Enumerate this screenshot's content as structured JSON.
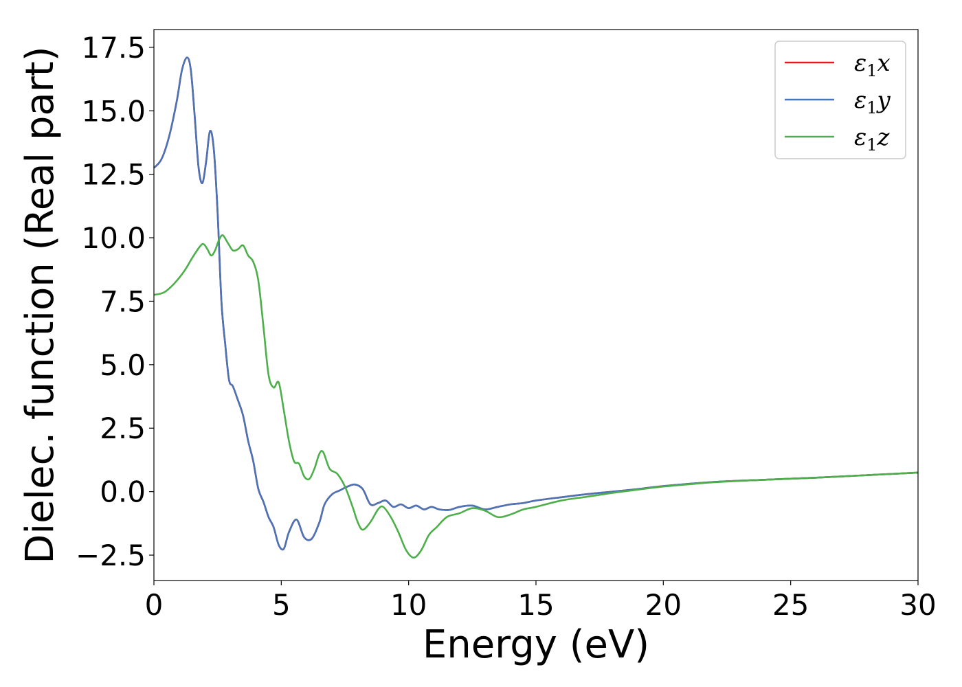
{
  "chart_data": {
    "type": "line",
    "xlabel": "Energy (eV)",
    "ylabel": "Dielec. function (Real part)",
    "xlim": [
      0,
      30
    ],
    "ylim": [
      -3.5,
      18.2
    ],
    "grid": false,
    "legend_position": "top-right",
    "xticks": [
      0,
      5,
      10,
      15,
      20,
      25,
      30
    ],
    "xtick_labels": [
      "0",
      "5",
      "10",
      "15",
      "20",
      "25",
      "30"
    ],
    "yticks": [
      -2.5,
      0,
      2.5,
      5,
      7.5,
      10,
      12.5,
      15,
      17.5
    ],
    "ytick_labels": [
      "−2.5",
      "0.0",
      "2.5",
      "5.0",
      "7.5",
      "10.0",
      "12.5",
      "15.0",
      "17.5"
    ],
    "series": [
      {
        "name_symbol": "ε",
        "name_sub": "1",
        "name_axis": "x",
        "color": "#e41a1c",
        "x": [
          0,
          0.3,
          0.6,
          0.9,
          1.1,
          1.3,
          1.45,
          1.6,
          1.75,
          1.9,
          2.05,
          2.2,
          2.35,
          2.5,
          2.65,
          2.8,
          2.95,
          3.1,
          3.3,
          3.5,
          3.7,
          3.9,
          4.1,
          4.3,
          4.5,
          4.7,
          4.9,
          5.1,
          5.3,
          5.6,
          5.9,
          6.2,
          6.5,
          6.7,
          7.0,
          7.3,
          7.6,
          7.9,
          8.2,
          8.5,
          8.8,
          9.1,
          9.4,
          9.7,
          10.0,
          10.3,
          10.6,
          10.9,
          11.2,
          11.6,
          12.0,
          12.5,
          13.0,
          13.5,
          14.0,
          14.5,
          15.0,
          16.0,
          17.0,
          18.0,
          19.0,
          20.0,
          22.0,
          24.0,
          26.0,
          28.0,
          30.0
        ],
        "y": [
          12.75,
          13.1,
          14.0,
          15.4,
          16.6,
          17.1,
          16.6,
          14.8,
          12.8,
          12.15,
          13.0,
          14.2,
          13.5,
          11.0,
          7.5,
          5.8,
          4.4,
          4.15,
          3.6,
          3.0,
          2.0,
          1.2,
          0.1,
          -0.4,
          -1.0,
          -1.4,
          -2.1,
          -2.25,
          -1.6,
          -1.1,
          -1.8,
          -1.85,
          -1.2,
          -0.5,
          -0.1,
          0.05,
          0.2,
          0.28,
          0.1,
          -0.5,
          -0.45,
          -0.35,
          -0.6,
          -0.5,
          -0.65,
          -0.55,
          -0.7,
          -0.6,
          -0.7,
          -0.72,
          -0.6,
          -0.55,
          -0.7,
          -0.6,
          -0.5,
          -0.45,
          -0.35,
          -0.22,
          -0.1,
          0.0,
          0.1,
          0.22,
          0.38,
          0.47,
          0.55,
          0.65,
          0.75
        ]
      },
      {
        "name_symbol": "ε",
        "name_sub": "1",
        "name_axis": "y",
        "color": "#4a74b8",
        "x": [
          0,
          0.3,
          0.6,
          0.9,
          1.1,
          1.3,
          1.45,
          1.6,
          1.75,
          1.9,
          2.05,
          2.2,
          2.35,
          2.5,
          2.65,
          2.8,
          2.95,
          3.1,
          3.3,
          3.5,
          3.7,
          3.9,
          4.1,
          4.3,
          4.5,
          4.7,
          4.9,
          5.1,
          5.3,
          5.6,
          5.9,
          6.2,
          6.5,
          6.7,
          7.0,
          7.3,
          7.6,
          7.9,
          8.2,
          8.5,
          8.8,
          9.1,
          9.4,
          9.7,
          10.0,
          10.3,
          10.6,
          10.9,
          11.2,
          11.6,
          12.0,
          12.5,
          13.0,
          13.5,
          14.0,
          14.5,
          15.0,
          16.0,
          17.0,
          18.0,
          19.0,
          20.0,
          22.0,
          24.0,
          26.0,
          28.0,
          30.0
        ],
        "y": [
          12.75,
          13.1,
          14.0,
          15.4,
          16.6,
          17.1,
          16.6,
          14.8,
          12.8,
          12.15,
          13.0,
          14.2,
          13.5,
          11.0,
          7.5,
          5.8,
          4.4,
          4.15,
          3.6,
          3.0,
          2.0,
          1.2,
          0.1,
          -0.4,
          -1.0,
          -1.4,
          -2.1,
          -2.25,
          -1.6,
          -1.1,
          -1.8,
          -1.85,
          -1.2,
          -0.5,
          -0.1,
          0.05,
          0.2,
          0.28,
          0.1,
          -0.5,
          -0.45,
          -0.35,
          -0.6,
          -0.5,
          -0.65,
          -0.55,
          -0.7,
          -0.6,
          -0.7,
          -0.72,
          -0.6,
          -0.55,
          -0.7,
          -0.6,
          -0.5,
          -0.45,
          -0.35,
          -0.22,
          -0.1,
          0.0,
          0.1,
          0.22,
          0.38,
          0.47,
          0.55,
          0.65,
          0.75
        ]
      },
      {
        "name_symbol": "ε",
        "name_sub": "1",
        "name_axis": "z",
        "color": "#4daf4a",
        "x": [
          0,
          0.4,
          0.8,
          1.2,
          1.5,
          1.8,
          1.95,
          2.1,
          2.25,
          2.4,
          2.55,
          2.7,
          2.9,
          3.1,
          3.3,
          3.5,
          3.7,
          3.9,
          4.1,
          4.3,
          4.5,
          4.7,
          4.9,
          5.1,
          5.3,
          5.5,
          5.7,
          5.9,
          6.1,
          6.3,
          6.5,
          6.65,
          6.9,
          7.2,
          7.5,
          7.8,
          8.0,
          8.2,
          8.5,
          8.8,
          9.0,
          9.3,
          9.6,
          9.9,
          10.2,
          10.5,
          10.8,
          11.1,
          11.5,
          12.0,
          12.5,
          13.0,
          13.5,
          14.0,
          14.5,
          15.0,
          16.0,
          17.0,
          18.0,
          19.0,
          20.0,
          22.0,
          24.0,
          26.0,
          28.0,
          30.0
        ],
        "y": [
          7.75,
          7.85,
          8.2,
          8.7,
          9.2,
          9.65,
          9.75,
          9.55,
          9.3,
          9.5,
          9.9,
          10.1,
          9.8,
          9.5,
          9.55,
          9.7,
          9.3,
          9.05,
          8.3,
          6.5,
          4.6,
          4.1,
          4.3,
          3.2,
          2.0,
          1.2,
          1.1,
          0.6,
          0.5,
          0.9,
          1.5,
          1.55,
          0.9,
          0.7,
          0.2,
          -0.6,
          -1.2,
          -1.5,
          -1.2,
          -0.7,
          -0.6,
          -1.0,
          -1.6,
          -2.3,
          -2.6,
          -2.3,
          -1.7,
          -1.4,
          -1.0,
          -0.85,
          -0.65,
          -0.75,
          -1.0,
          -0.9,
          -0.7,
          -0.6,
          -0.35,
          -0.2,
          -0.05,
          0.08,
          0.2,
          0.37,
          0.47,
          0.55,
          0.65,
          0.75
        ]
      }
    ]
  }
}
